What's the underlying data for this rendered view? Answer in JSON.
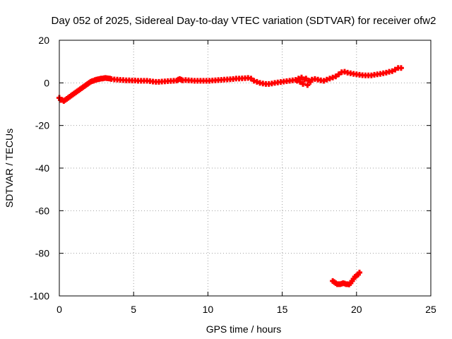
{
  "chart_data": {
    "type": "scatter",
    "title": "Day 052 of 2025, Sidereal Day-to-day VTEC variation (SDTVAR) for receiver ofw2",
    "xlabel": "GPS time / hours",
    "ylabel": "SDTVAR / TECUs",
    "xlim": [
      0,
      25
    ],
    "ylim": [
      -100,
      20
    ],
    "xticks": [
      "0",
      "5",
      "10",
      "15",
      "20",
      "25"
    ],
    "yticks": [
      "20",
      "0",
      "-20",
      "-40",
      "-60",
      "-80",
      "-100"
    ],
    "grid": true,
    "marker": "plus",
    "series_color": "#ff0000",
    "series": [
      {
        "x": [
          0.0,
          0.1,
          0.2,
          0.3,
          0.4,
          0.5,
          0.6,
          0.7,
          0.8,
          0.9,
          1.0,
          1.1,
          1.2,
          1.3,
          1.4,
          1.5,
          1.6,
          1.7,
          1.8,
          1.9,
          2.0,
          2.1,
          2.2,
          2.3,
          2.4,
          2.5,
          2.6,
          2.7,
          2.8,
          2.9,
          3.0,
          3.1,
          3.2,
          3.3,
          3.4,
          3.5,
          3.7,
          3.9,
          4.1,
          4.3,
          4.5,
          4.7,
          4.9,
          5.1,
          5.3,
          5.5,
          5.7,
          5.9,
          6.1,
          6.3,
          6.5,
          6.7,
          6.9,
          7.1,
          7.3,
          7.5,
          7.7,
          7.9,
          8.0,
          8.1,
          8.2,
          8.3,
          8.5,
          8.7,
          8.9,
          9.1,
          9.3,
          9.5,
          9.7,
          9.9,
          10.1,
          10.3,
          10.5,
          10.7,
          10.9,
          11.1,
          11.3,
          11.5,
          11.7,
          11.9,
          12.1,
          12.3,
          12.5,
          12.7,
          12.9,
          13.1,
          13.3,
          13.5,
          13.7,
          13.9,
          14.1,
          14.3,
          14.5,
          14.7,
          14.9,
          15.1,
          15.3,
          15.5,
          15.7,
          15.9,
          16.0,
          16.1,
          16.2,
          16.3,
          16.4,
          16.5,
          16.6,
          16.7,
          16.8,
          16.9,
          17.0,
          17.2,
          17.4,
          17.6,
          17.8,
          18.0,
          18.2,
          18.4,
          18.6,
          18.8,
          19.0,
          19.2,
          19.4,
          19.6,
          19.8,
          20.0,
          20.2,
          20.4,
          20.6,
          20.8,
          21.0,
          21.2,
          21.4,
          21.6,
          21.8,
          22.0,
          22.2,
          22.4,
          22.6,
          22.8,
          23.0
        ],
        "y": [
          -7,
          -8,
          -8,
          -8.5,
          -8,
          -7.5,
          -7,
          -6.5,
          -6,
          -5.5,
          -5,
          -4.5,
          -4,
          -3.5,
          -3,
          -2.5,
          -2,
          -1.5,
          -1,
          -0.5,
          0,
          0.5,
          0.8,
          1,
          1.3,
          1.5,
          1.7,
          1.8,
          2,
          2,
          2.2,
          2.3,
          2.2,
          2.1,
          2,
          1.8,
          1.6,
          1.5,
          1.4,
          1.3,
          1.2,
          1.2,
          1.1,
          1.1,
          1,
          1,
          1,
          1,
          0.8,
          0.6,
          0.5,
          0.5,
          0.6,
          0.7,
          0.8,
          0.9,
          1,
          1.1,
          1.5,
          1.8,
          1.5,
          1.2,
          1.3,
          1.2,
          1.1,
          1,
          1,
          1,
          1,
          1,
          1,
          1.1,
          1.2,
          1.3,
          1.4,
          1.5,
          1.6,
          1.7,
          1.8,
          2,
          2,
          2.1,
          2.2,
          2.3,
          2,
          1,
          0.5,
          0,
          -0.3,
          -0.5,
          -0.5,
          -0.3,
          0,
          0.2,
          0.4,
          0.6,
          0.8,
          1,
          1.2,
          1.4,
          1,
          2,
          0.5,
          2.5,
          -0.5,
          1.5,
          2,
          -1,
          1,
          0.5,
          1.5,
          1.8,
          1.5,
          1.2,
          1,
          1.5,
          2,
          2.5,
          3,
          4,
          5,
          5.2,
          4.8,
          4.5,
          4.2,
          4,
          3.8,
          3.6,
          3.5,
          3.5,
          3.5,
          3.8,
          4,
          4.2,
          4.5,
          4.8,
          5.2,
          5.5,
          6.2,
          7,
          7
        ]
      },
      {
        "x": [
          18.4,
          18.5,
          18.6,
          18.7,
          18.8,
          18.9,
          19.0,
          19.1,
          19.2,
          19.3,
          19.4,
          19.5,
          19.6,
          19.7,
          19.8,
          19.9,
          20.0,
          20.1,
          20.2
        ],
        "y": [
          -93,
          -93.5,
          -94,
          -94.5,
          -94.5,
          -94.5,
          -94.3,
          -94,
          -94.2,
          -94.5,
          -94.5,
          -94.6,
          -94,
          -93,
          -92,
          -91,
          -90.5,
          -90,
          -89
        ]
      }
    ]
  }
}
